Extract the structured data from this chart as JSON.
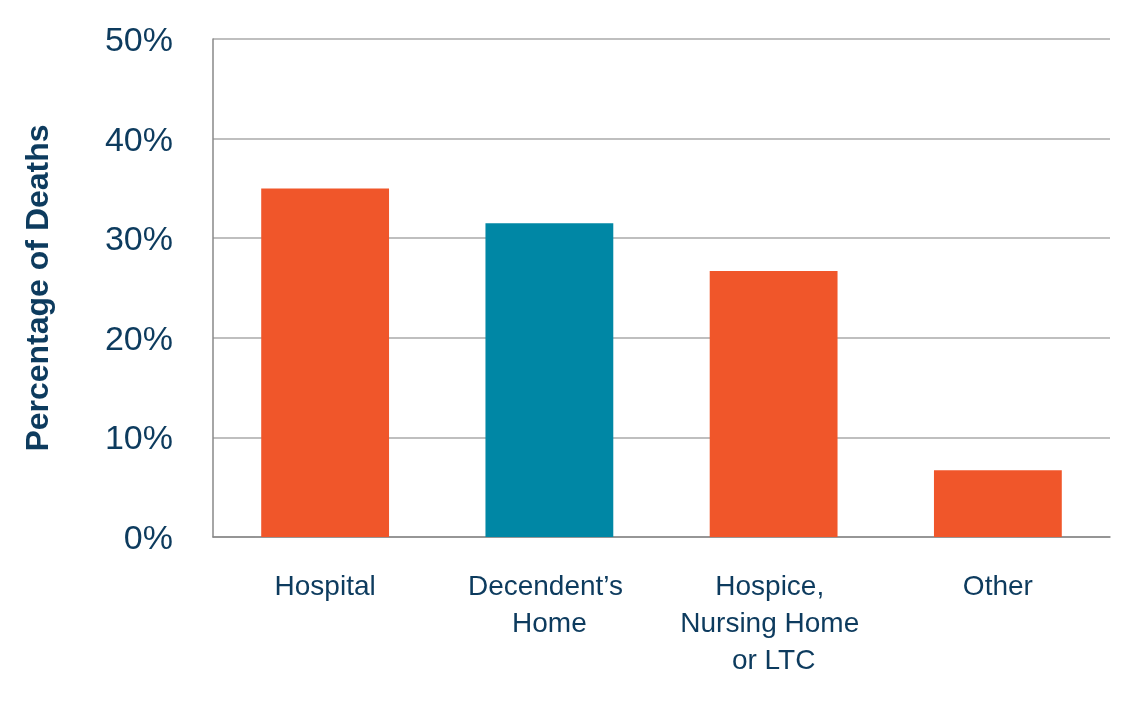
{
  "chart_data": {
    "type": "bar",
    "ylabel": "Percentage of Deaths",
    "categories": [
      "Hospital",
      "Decendent’s Home",
      "Hospice, Nursing Home or LTC",
      "Other"
    ],
    "values": [
      35,
      31.5,
      26.7,
      6.7
    ],
    "colors": [
      "#f0562a",
      "#0087a5",
      "#f0562a",
      "#f0562a"
    ],
    "ylim": [
      0,
      50
    ],
    "yticks": [
      {
        "value": 0,
        "label": "0%"
      },
      {
        "value": 10,
        "label": "10%"
      },
      {
        "value": 20,
        "label": "20%"
      },
      {
        "value": 30,
        "label": "30%"
      },
      {
        "value": 40,
        "label": "40%"
      },
      {
        "value": 50,
        "label": "50%"
      }
    ],
    "grid": "y"
  }
}
